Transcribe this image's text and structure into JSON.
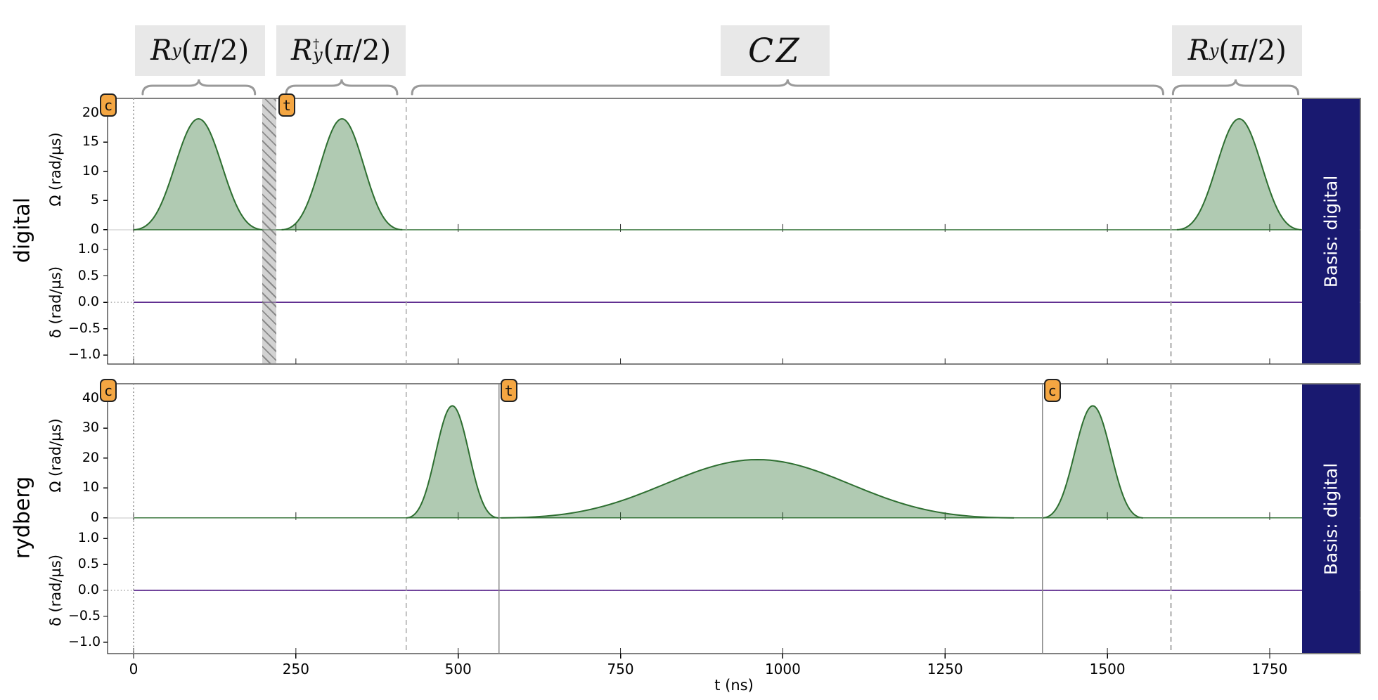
{
  "chart_data": {
    "type": "pulse-sequence",
    "xaxis": {
      "label": "t (ns)",
      "ticks": [
        0,
        250,
        500,
        750,
        1000,
        1250,
        1500,
        1750
      ],
      "range": [
        -40,
        1889
      ]
    },
    "gates": [
      {
        "text": "R_y(π/2)",
        "base": "R",
        "sub": "y",
        "sup": "",
        "args": "(π/2)",
        "box_t": [
          2,
          202
        ],
        "brace_t": [
          14,
          187
        ]
      },
      {
        "text": "R_y†(π/2)",
        "base": "R",
        "sub": "y",
        "sup": "†",
        "args": "(π/2)",
        "box_t": [
          220,
          419
        ],
        "brace_t": [
          235,
          406
        ]
      },
      {
        "text": "CZ",
        "base": "CZ",
        "sub": "",
        "sup": "",
        "args": "",
        "box_t": [
          904,
          1072
        ],
        "brace_t": [
          429,
          1586
        ]
      },
      {
        "text": "R_y(π/2)",
        "base": "R",
        "sub": "y",
        "sup": "",
        "args": "(π/2)",
        "box_t": [
          1600,
          1800
        ],
        "brace_t": [
          1601,
          1794
        ]
      }
    ],
    "channels": [
      {
        "name": "digital",
        "omega": {
          "label": "Ω (rad/µs)",
          "ylim": [
            -2.3,
            22.5
          ],
          "ticks": [
            {
              "v": 0,
              "label": "0"
            },
            {
              "v": 5,
              "label": "5"
            },
            {
              "v": 10,
              "label": "10"
            },
            {
              "v": 15,
              "label": "15"
            },
            {
              "v": 20,
              "label": "20"
            }
          ],
          "pulses": [
            {
              "shape": "blackman",
              "t0": 0,
              "duration": 200,
              "amp": 19
            },
            {
              "shape": "blackman",
              "t0": 228,
              "duration": 186,
              "amp": 19
            },
            {
              "shape": "blackman",
              "t0": 1607,
              "duration": 192,
              "amp": 19
            }
          ]
        },
        "delta": {
          "label": "δ (rad/µs)",
          "ylim": [
            -1.17,
            1.12
          ],
          "ticks": [
            {
              "v": -1,
              "label": "−1.0"
            },
            {
              "v": -0.5,
              "label": "−0.5"
            },
            {
              "v": 0,
              "label": "0.0"
            },
            {
              "v": 0.5,
              "label": "0.5"
            },
            {
              "v": 1,
              "label": "1.0"
            }
          ],
          "value": 0
        },
        "badges": [
          {
            "letter": "c",
            "t": -40,
            "anchor": "start"
          },
          {
            "letter": "t",
            "t": 222,
            "anchor": "line"
          }
        ],
        "markers": [
          {
            "style": "dotted",
            "t": 0
          },
          {
            "style": "dashed",
            "t": 420
          },
          {
            "style": "dashed",
            "t": 1598
          }
        ],
        "hatch_bands": [
          {
            "t0": 198,
            "t1": 220
          }
        ],
        "measurement": {
          "label": "Basis: digital",
          "t_start": 1800
        }
      },
      {
        "name": "rydberg",
        "omega": {
          "label": "Ω (rad/µs)",
          "ylim": [
            -3.8,
            44.9
          ],
          "ticks": [
            {
              "v": 0,
              "label": "0"
            },
            {
              "v": 10,
              "label": "10"
            },
            {
              "v": 20,
              "label": "20"
            },
            {
              "v": 30,
              "label": "30"
            },
            {
              "v": 40,
              "label": "40"
            }
          ],
          "pulses": [
            {
              "shape": "blackman",
              "t0": 420,
              "duration": 142,
              "amp": 37.5
            },
            {
              "shape": "blackman",
              "t0": 566,
              "duration": 790,
              "amp": 19.5
            },
            {
              "shape": "blackman",
              "t0": 1400,
              "duration": 155,
              "amp": 37.5
            }
          ]
        },
        "delta": {
          "label": "δ (rad/µs)",
          "ylim": [
            -1.22,
            1.18
          ],
          "ticks": [
            {
              "v": -1,
              "label": "−1.0"
            },
            {
              "v": -0.5,
              "label": "−0.5"
            },
            {
              "v": 0,
              "label": "0.0"
            },
            {
              "v": 0.5,
              "label": "0.5"
            },
            {
              "v": 1,
              "label": "1.0"
            }
          ],
          "value": 0
        },
        "badges": [
          {
            "letter": "c",
            "t": -40,
            "anchor": "start"
          },
          {
            "letter": "t",
            "t": 564,
            "anchor": "line"
          },
          {
            "letter": "c",
            "t": 1401,
            "anchor": "line"
          }
        ],
        "markers": [
          {
            "style": "dotted",
            "t": 0
          },
          {
            "style": "dashed",
            "t": 420
          },
          {
            "style": "solid",
            "t": 563
          },
          {
            "style": "solid",
            "t": 1400
          },
          {
            "style": "dashed",
            "t": 1598
          }
        ],
        "hatch_bands": [],
        "measurement": {
          "label": "Basis: digital",
          "t_start": 1800
        }
      }
    ],
    "colors": {
      "omega_line": "#2d6e30",
      "omega_fill": "rgba(40,110,45,0.37)",
      "omega_zero_line": "#c4c4c4",
      "delta_line": "#5e2b8f",
      "delta_zero_dots": "#999999",
      "marker_gray": "#a8a8a8",
      "solid_marker": "#8a8a8a",
      "brace": "#9a9a9a",
      "gate_box_bg": "#e8e8e8",
      "badge_fill": "#F4A642",
      "measurement_bar": "#191970",
      "frame": "#000000"
    }
  }
}
